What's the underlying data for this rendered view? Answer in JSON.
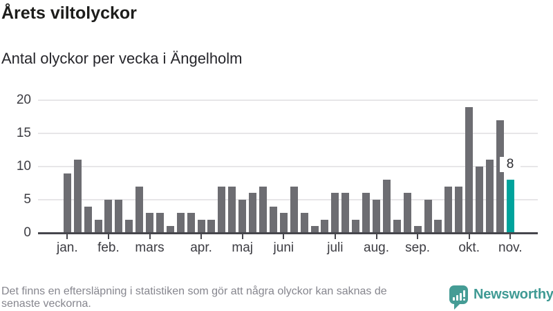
{
  "header": {
    "title": "Årets viltolyckor",
    "subtitle": "Antal olyckor per vecka i Ängelholm"
  },
  "chart_data": {
    "type": "bar",
    "title": "Årets viltolyckor",
    "subtitle": "Antal olyckor per vecka i Ängelholm",
    "x_unit": "vecka",
    "values": [
      9,
      11,
      4,
      2,
      5,
      5,
      2,
      7,
      3,
      3,
      1,
      3,
      3,
      2,
      2,
      7,
      7,
      5,
      6,
      7,
      4,
      3,
      7,
      3,
      1,
      2,
      6,
      6,
      2,
      6,
      5,
      8,
      2,
      6,
      1,
      5,
      2,
      7,
      7,
      19,
      10,
      11,
      17,
      8
    ],
    "highlight": {
      "index": 43,
      "value": 8,
      "label": "8"
    },
    "month_ticks": [
      {
        "label": "jan.",
        "index": 0
      },
      {
        "label": "feb.",
        "index": 4
      },
      {
        "label": "mars",
        "index": 8
      },
      {
        "label": "apr.",
        "index": 13
      },
      {
        "label": "maj",
        "index": 17
      },
      {
        "label": "juni",
        "index": 21
      },
      {
        "label": "juli",
        "index": 26
      },
      {
        "label": "aug.",
        "index": 30
      },
      {
        "label": "sep.",
        "index": 34
      },
      {
        "label": "okt.",
        "index": 39
      },
      {
        "label": "nov.",
        "index": 43
      }
    ],
    "y_ticks": [
      0,
      5,
      10,
      15,
      20
    ],
    "ylim": [
      0,
      20
    ],
    "grid": true,
    "legend": "none",
    "colors": {
      "bar": "#6d6d72",
      "highlight": "#00a39c"
    }
  },
  "footer": {
    "note_line1": "Det finns en eftersläpning i statistiken som gör att några olyckor kan saknas de",
    "note_line2": "senaste veckorna.",
    "brand": "Newsworthy"
  }
}
